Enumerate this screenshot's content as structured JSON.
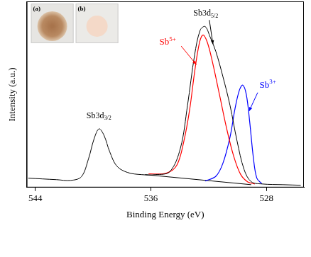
{
  "chart_data": {
    "type": "line",
    "x_label": "Binding Energy (eV)",
    "y_label": "Intensity (a.u.)",
    "xlim": [
      544.6,
      525.4
    ],
    "xticks": [
      544,
      536,
      528
    ],
    "ylim": [
      0,
      100
    ],
    "yticks": [],
    "tick_labels": "x",
    "grid": false,
    "series": [
      {
        "color": "#000000",
        "x": [
          544.49,
          543.51,
          542.53,
          541.55,
          540.81,
          540.32,
          539.93,
          539.59,
          539.25,
          538.85,
          538.36,
          537.63,
          536.65,
          535.67,
          534.69,
          533.95,
          533.46,
          532.97,
          532.58,
          532.24,
          531.89,
          531.5,
          531.01,
          530.52,
          530.03,
          529.54,
          529.05,
          528.31,
          526.84,
          525.62
        ],
        "values": [
          5.0,
          4.6,
          4.2,
          3.8,
          5.8,
          15.4,
          26.2,
          31.5,
          28.1,
          19.2,
          11.5,
          8.1,
          6.9,
          6.9,
          8.5,
          21.2,
          44.2,
          71.2,
          84.6,
          86.5,
          80.8,
          73.1,
          59.6,
          44.2,
          25.0,
          9.6,
          3.1,
          1.9,
          1.5,
          1.2
        ]
      },
      {
        "name": "Sb5+",
        "color": "#ff0000",
        "x": [
          536.16,
          534.93,
          534.2,
          533.71,
          533.31,
          532.97,
          532.63,
          532.38,
          532.09,
          531.75,
          531.25,
          530.76,
          530.27,
          529.78,
          529.29,
          528.8
        ],
        "values": [
          7.3,
          7.7,
          12,
          25,
          42,
          62,
          78,
          82,
          78,
          68,
          50,
          32,
          17,
          7,
          3,
          1.9
        ]
      },
      {
        "name": "Sb3+",
        "color": "#0000ff",
        "x": [
          532.24,
          531.5,
          531.01,
          530.52,
          530.18,
          529.88,
          529.64,
          529.39,
          529.15,
          528.9,
          528.66,
          528.31
        ],
        "values": [
          3.5,
          6,
          13,
          27,
          42,
          52,
          55,
          50,
          35,
          16,
          5,
          2
        ]
      },
      {
        "color": "#000000",
        "x": [
          536.4,
          529.05
        ],
        "values": [
          6.9,
          1.5
        ]
      }
    ],
    "annotations": [
      {
        "text": "Sb3d3/2"
      },
      {
        "text": "Sb3d5/2"
      }
    ],
    "insets": [
      {
        "label": "(a)"
      },
      {
        "label": "(b)"
      }
    ]
  }
}
